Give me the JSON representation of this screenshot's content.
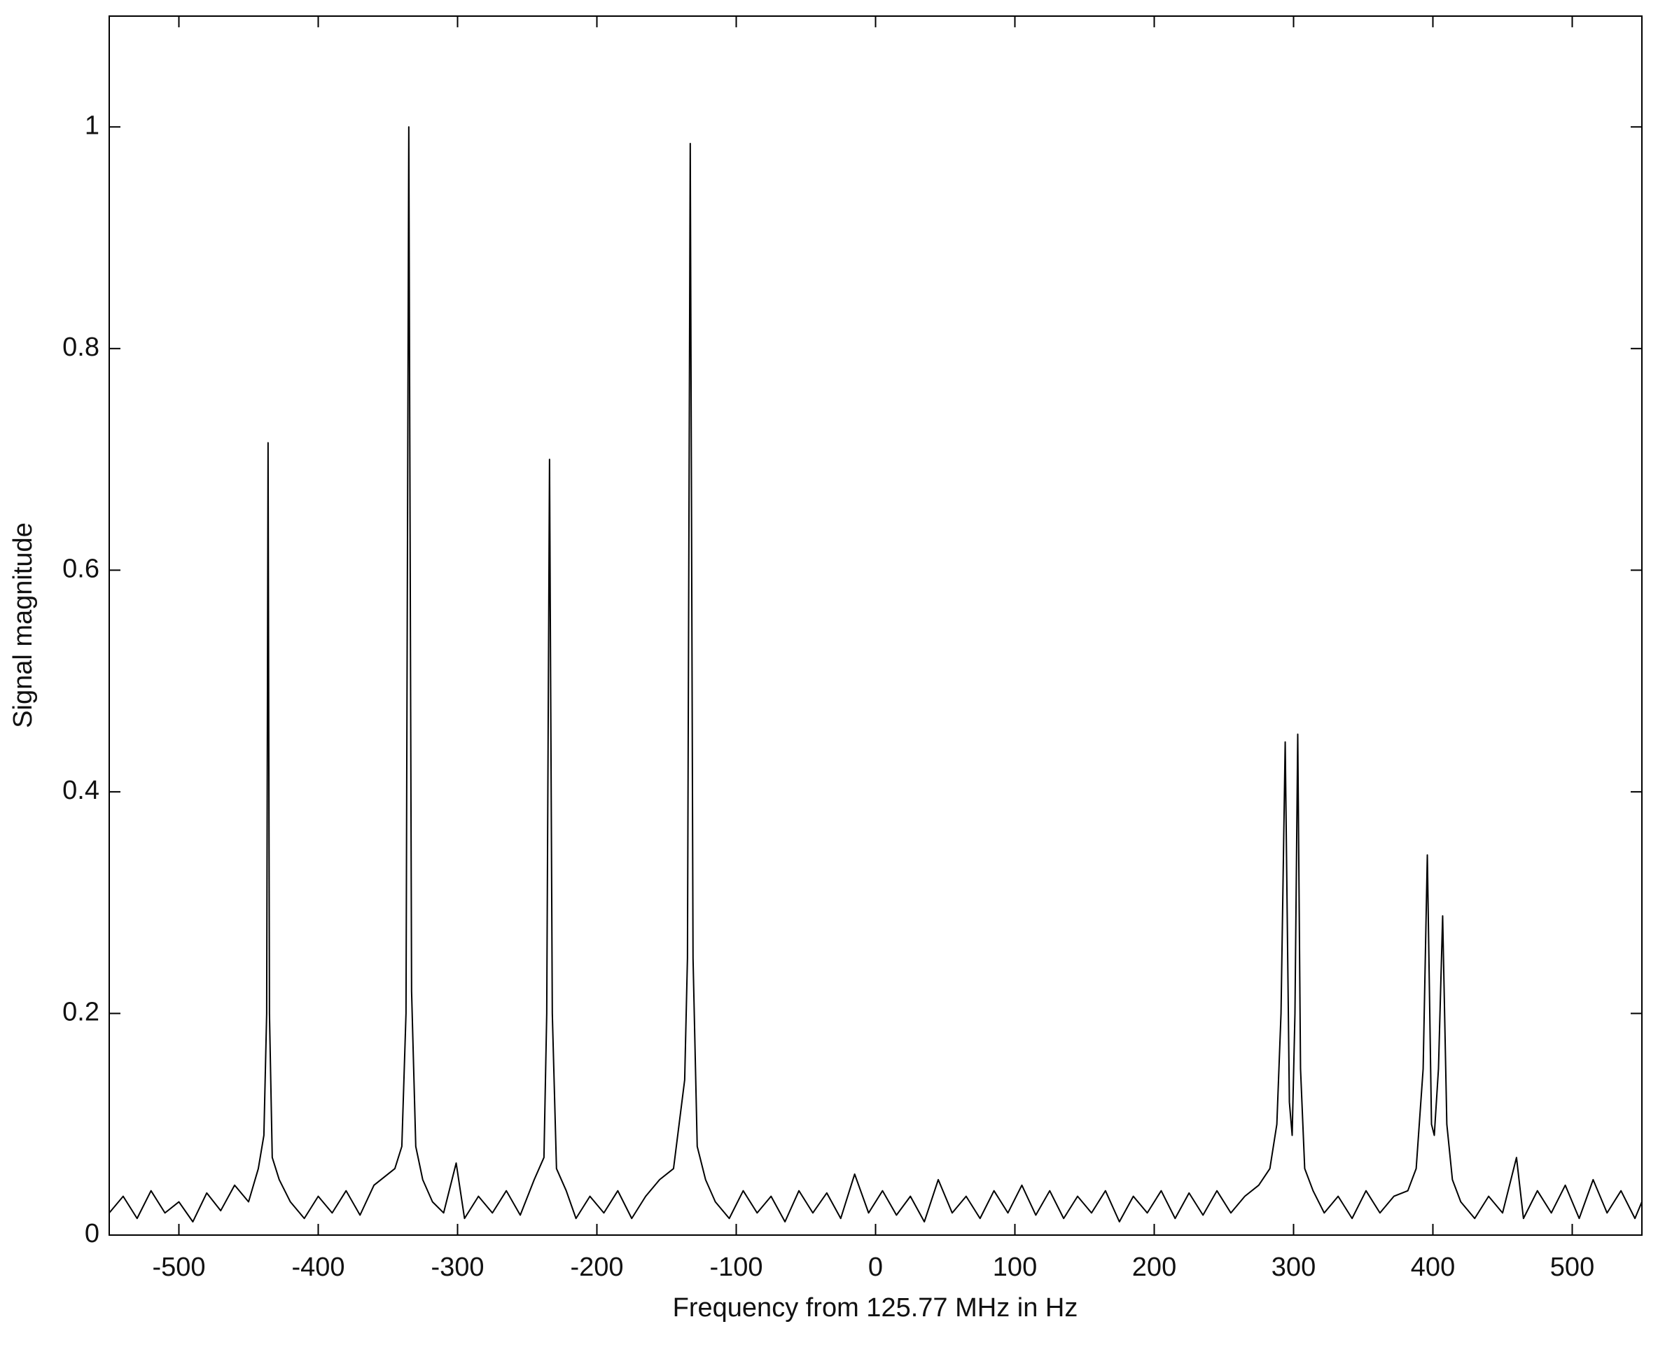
{
  "chart_data": {
    "type": "line",
    "x_label": "Frequency from 125.77 MHz in Hz",
    "y_label": "Signal magnitude",
    "color": "#000000",
    "xlim": [
      -550,
      550
    ],
    "ylim": [
      0,
      1.1
    ],
    "xticks": [
      -500,
      -400,
      -300,
      -200,
      -100,
      0,
      100,
      200,
      300,
      400,
      500
    ],
    "yticks": [
      0,
      0.2,
      0.4,
      0.6,
      0.8,
      1
    ],
    "x": [
      -550,
      -540,
      -530,
      -520,
      -510,
      -500,
      -490,
      -480,
      -470,
      -460,
      -450,
      -443,
      -439,
      -437,
      -436,
      -435,
      -433,
      -428,
      -420,
      -410,
      -400,
      -390,
      -380,
      -370,
      -360,
      -345,
      -340,
      -337,
      -335,
      -333,
      -330,
      -325,
      -318,
      -310,
      -301,
      -295,
      -285,
      -275,
      -265,
      -255,
      -245,
      -238,
      -236,
      -234,
      -232,
      -229,
      -222,
      -215,
      -205,
      -195,
      -185,
      -175,
      -165,
      -155,
      -145,
      -137,
      -135,
      -133,
      -131,
      -128,
      -122,
      -115,
      -105,
      -95,
      -85,
      -75,
      -65,
      -55,
      -45,
      -35,
      -25,
      -15,
      -5,
      5,
      15,
      25,
      35,
      45,
      55,
      65,
      75,
      85,
      95,
      105,
      115,
      125,
      135,
      145,
      155,
      165,
      175,
      185,
      195,
      205,
      215,
      225,
      235,
      245,
      255,
      265,
      275,
      283,
      288,
      291,
      294,
      297,
      299,
      301,
      303,
      305,
      308,
      314,
      322,
      332,
      342,
      352,
      362,
      372,
      382,
      388,
      393,
      396,
      399,
      401,
      404,
      407,
      410,
      414,
      420,
      430,
      440,
      450,
      460,
      465,
      475,
      485,
      495,
      505,
      515,
      525,
      535,
      545,
      550
    ],
    "values": [
      0.02,
      0.035,
      0.015,
      0.04,
      0.02,
      0.03,
      0.012,
      0.038,
      0.022,
      0.045,
      0.03,
      0.06,
      0.09,
      0.2,
      0.715,
      0.2,
      0.07,
      0.05,
      0.03,
      0.015,
      0.035,
      0.02,
      0.04,
      0.018,
      0.045,
      0.06,
      0.08,
      0.2,
      1.0,
      0.22,
      0.08,
      0.05,
      0.03,
      0.02,
      0.065,
      0.015,
      0.035,
      0.02,
      0.04,
      0.018,
      0.05,
      0.07,
      0.2,
      0.7,
      0.2,
      0.06,
      0.04,
      0.015,
      0.035,
      0.02,
      0.04,
      0.015,
      0.035,
      0.05,
      0.06,
      0.14,
      0.25,
      0.985,
      0.25,
      0.08,
      0.05,
      0.03,
      0.015,
      0.04,
      0.02,
      0.035,
      0.012,
      0.04,
      0.02,
      0.038,
      0.015,
      0.055,
      0.02,
      0.04,
      0.018,
      0.035,
      0.012,
      0.05,
      0.02,
      0.035,
      0.015,
      0.04,
      0.02,
      0.045,
      0.018,
      0.04,
      0.015,
      0.035,
      0.02,
      0.04,
      0.012,
      0.035,
      0.02,
      0.04,
      0.015,
      0.038,
      0.018,
      0.04,
      0.02,
      0.035,
      0.045,
      0.06,
      0.1,
      0.2,
      0.445,
      0.12,
      0.09,
      0.2,
      0.452,
      0.15,
      0.06,
      0.04,
      0.02,
      0.035,
      0.015,
      0.04,
      0.02,
      0.035,
      0.04,
      0.06,
      0.15,
      0.343,
      0.1,
      0.09,
      0.15,
      0.288,
      0.1,
      0.05,
      0.03,
      0.015,
      0.035,
      0.02,
      0.07,
      0.015,
      0.04,
      0.02,
      0.045,
      0.015,
      0.05,
      0.02,
      0.04,
      0.015,
      0.03
    ]
  }
}
